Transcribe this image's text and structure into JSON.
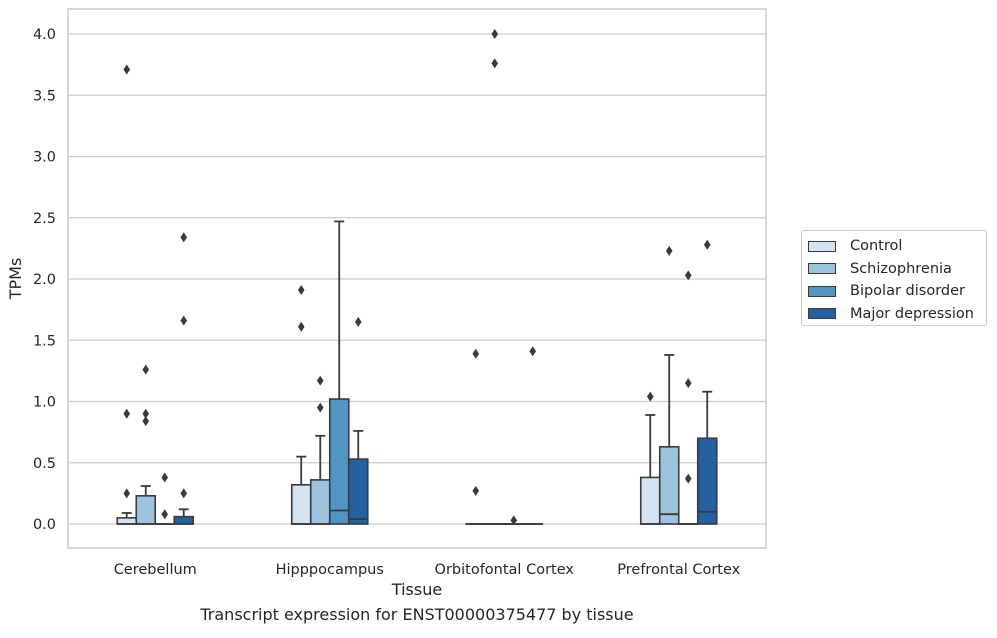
{
  "chart_data": {
    "type": "box",
    "title": "",
    "xlabel": "Tissue",
    "ylabel": "TPMs",
    "caption": "Transcript expression for ENST00000375477 by tissue",
    "ylim": [
      -0.19,
      4.2
    ],
    "yticks": [
      0.0,
      0.5,
      1.0,
      1.5,
      2.0,
      2.5,
      3.0,
      3.5,
      4.0
    ],
    "ytick_labels": [
      "0.0",
      "0.5",
      "1.0",
      "1.5",
      "2.0",
      "2.5",
      "3.0",
      "3.5",
      "4.0"
    ],
    "grid": true,
    "legend_position": "right-center",
    "categories": [
      "Cerebellum",
      "Hipppocampus",
      "Orbitofontal Cortex",
      "Prefrontal Cortex"
    ],
    "series": [
      {
        "name": "Control",
        "color": "#d3e3f2",
        "boxes": [
          {
            "q1": 0.0,
            "median": 0.0,
            "q3": 0.05,
            "whisker_low": 0.0,
            "whisker_high": 0.09,
            "outliers": [
              3.71,
              0.9,
              0.25
            ]
          },
          {
            "q1": 0.0,
            "median": 0.0,
            "q3": 0.32,
            "whisker_low": 0.0,
            "whisker_high": 0.55,
            "outliers": [
              1.91,
              1.61
            ]
          },
          {
            "q1": 0.0,
            "median": 0.0,
            "q3": 0.0,
            "whisker_low": 0.0,
            "whisker_high": 0.0,
            "outliers": [
              1.39,
              0.27
            ]
          },
          {
            "q1": 0.0,
            "median": 0.0,
            "q3": 0.38,
            "whisker_low": 0.0,
            "whisker_high": 0.89,
            "outliers": [
              1.04
            ]
          }
        ]
      },
      {
        "name": "Schizophrenia",
        "color": "#9dc4de",
        "boxes": [
          {
            "q1": 0.0,
            "median": 0.0,
            "q3": 0.23,
            "whisker_low": 0.0,
            "whisker_high": 0.31,
            "outliers": [
              1.26,
              0.9,
              0.84
            ]
          },
          {
            "q1": 0.0,
            "median": 0.0,
            "q3": 0.36,
            "whisker_low": 0.0,
            "whisker_high": 0.72,
            "outliers": [
              1.17,
              0.95
            ]
          },
          {
            "q1": 0.0,
            "median": 0.0,
            "q3": 0.0,
            "whisker_low": 0.0,
            "whisker_high": 0.0,
            "outliers": [
              4.0,
              3.76
            ]
          },
          {
            "q1": 0.0,
            "median": 0.08,
            "q3": 0.63,
            "whisker_low": 0.0,
            "whisker_high": 1.38,
            "outliers": [
              2.23
            ]
          }
        ]
      },
      {
        "name": "Bipolar disorder",
        "color": "#5195c4",
        "boxes": [
          {
            "q1": 0.0,
            "median": 0.0,
            "q3": 0.0,
            "whisker_low": 0.0,
            "whisker_high": 0.0,
            "outliers": [
              0.38,
              0.08
            ]
          },
          {
            "q1": 0.0,
            "median": 0.11,
            "q3": 1.02,
            "whisker_low": 0.0,
            "whisker_high": 2.47,
            "outliers": []
          },
          {
            "q1": 0.0,
            "median": 0.0,
            "q3": 0.0,
            "whisker_low": 0.0,
            "whisker_high": 0.0,
            "outliers": [
              0.03
            ]
          },
          {
            "q1": 0.0,
            "median": 0.0,
            "q3": 0.0,
            "whisker_low": 0.0,
            "whisker_high": 0.0,
            "outliers": [
              2.03,
              1.15,
              0.37
            ]
          }
        ]
      },
      {
        "name": "Major depression",
        "color": "#2461a1",
        "boxes": [
          {
            "q1": 0.0,
            "median": 0.0,
            "q3": 0.06,
            "whisker_low": 0.0,
            "whisker_high": 0.12,
            "outliers": [
              2.34,
              1.66,
              0.25
            ]
          },
          {
            "q1": 0.0,
            "median": 0.04,
            "q3": 0.53,
            "whisker_low": 0.0,
            "whisker_high": 0.76,
            "outliers": [
              1.65
            ]
          },
          {
            "q1": 0.0,
            "median": 0.0,
            "q3": 0.0,
            "whisker_low": 0.0,
            "whisker_high": 0.0,
            "outliers": [
              1.41
            ]
          },
          {
            "q1": 0.0,
            "median": 0.1,
            "q3": 0.7,
            "whisker_low": 0.0,
            "whisker_high": 1.08,
            "outliers": [
              2.28
            ]
          }
        ]
      }
    ]
  }
}
